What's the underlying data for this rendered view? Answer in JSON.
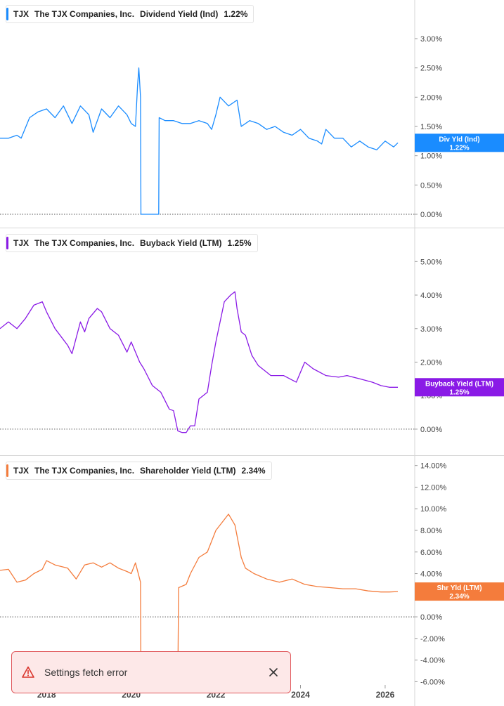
{
  "panes": [
    {
      "ticker": "TJX",
      "company": "The TJX Companies, Inc.",
      "metric": "Dividend Yield (Ind)",
      "value": "1.22%",
      "tag_label": "Div Yld (Ind)",
      "tag_value": "1.22%",
      "color": "#1a8cff"
    },
    {
      "ticker": "TJX",
      "company": "The TJX Companies, Inc.",
      "metric": "Buyback Yield (LTM)",
      "value": "1.25%",
      "tag_label": "Buyback Yield (LTM)",
      "tag_value": "1.25%",
      "color": "#8a1ae6"
    },
    {
      "ticker": "TJX",
      "company": "The TJX Companies, Inc.",
      "metric": "Shareholder Yield (LTM)",
      "value": "2.34%",
      "tag_label": "Shr Yld (LTM)",
      "tag_value": "2.34%",
      "color": "#f47c3c"
    }
  ],
  "toast": {
    "message": "Settings fetch error"
  },
  "chart_data": [
    {
      "type": "line",
      "title": "Dividend Yield (Ind)",
      "ylim": [
        0,
        3.3
      ],
      "yticks": [
        0,
        0.5,
        1.0,
        1.5,
        2.0,
        2.5,
        3.0
      ],
      "ytick_labels": [
        "0.00%",
        "0.50%",
        "1.00%",
        "1.50%",
        "2.00%",
        "2.50%",
        "3.00%"
      ],
      "x_range": [
        2016.9,
        2026.4
      ],
      "baseline": 0,
      "series": [
        {
          "color": "#1a8cff",
          "x": [
            2016.9,
            2017.1,
            2017.3,
            2017.4,
            2017.6,
            2017.8,
            2018.0,
            2018.2,
            2018.4,
            2018.6,
            2018.8,
            2019.0,
            2019.1,
            2019.3,
            2019.5,
            2019.7,
            2019.9,
            2020.0,
            2020.1,
            2020.15,
            2020.18,
            2020.22,
            2020.23,
            2020.65,
            2020.66,
            2020.8,
            2021.0,
            2021.2,
            2021.4,
            2021.6,
            2021.8,
            2021.9,
            2022.0,
            2022.1,
            2022.3,
            2022.5,
            2022.6,
            2022.8,
            2023.0,
            2023.2,
            2023.4,
            2023.6,
            2023.8,
            2024.0,
            2024.2,
            2024.4,
            2024.5,
            2024.6,
            2024.8,
            2025.0,
            2025.2,
            2025.4,
            2025.6,
            2025.8,
            2026.0,
            2026.1,
            2026.2,
            2026.3
          ],
          "y": [
            1.3,
            1.3,
            1.35,
            1.3,
            1.65,
            1.75,
            1.8,
            1.65,
            1.85,
            1.55,
            1.85,
            1.7,
            1.4,
            1.8,
            1.65,
            1.85,
            1.7,
            1.55,
            1.5,
            2.2,
            2.5,
            2.0,
            0,
            0,
            1.65,
            1.6,
            1.6,
            1.55,
            1.55,
            1.6,
            1.55,
            1.45,
            1.7,
            2.0,
            1.85,
            1.95,
            1.5,
            1.6,
            1.55,
            1.45,
            1.5,
            1.4,
            1.35,
            1.45,
            1.3,
            1.25,
            1.2,
            1.45,
            1.3,
            1.3,
            1.15,
            1.25,
            1.15,
            1.1,
            1.25,
            1.2,
            1.15,
            1.22
          ]
        }
      ]
    },
    {
      "type": "line",
      "title": "Buyback Yield (LTM)",
      "ylim": [
        -0.4,
        5.3
      ],
      "yticks": [
        0,
        1.0,
        2.0,
        3.0,
        4.0,
        5.0
      ],
      "ytick_labels": [
        "0.00%",
        "1.00%",
        "2.00%",
        "3.00%",
        "4.00%",
        "5.00%"
      ],
      "x_range": [
        2016.9,
        2026.4
      ],
      "baseline": 0,
      "series": [
        {
          "color": "#8a1ae6",
          "x": [
            2016.9,
            2017.1,
            2017.3,
            2017.5,
            2017.7,
            2017.9,
            2018.0,
            2018.2,
            2018.5,
            2018.6,
            2018.8,
            2018.9,
            2019.0,
            2019.2,
            2019.3,
            2019.5,
            2019.7,
            2019.9,
            2020.0,
            2020.2,
            2020.3,
            2020.5,
            2020.7,
            2020.9,
            2021.0,
            2021.1,
            2021.2,
            2021.3,
            2021.4,
            2021.5,
            2021.6,
            2021.8,
            2021.9,
            2022.0,
            2022.2,
            2022.35,
            2022.45,
            2022.5,
            2022.6,
            2022.7,
            2022.85,
            2023.0,
            2023.3,
            2023.6,
            2023.9,
            2024.1,
            2024.3,
            2024.6,
            2024.9,
            2025.1,
            2025.4,
            2025.7,
            2025.9,
            2026.1,
            2026.3
          ],
          "y": [
            3.0,
            3.2,
            3.0,
            3.3,
            3.7,
            3.8,
            3.5,
            3.0,
            2.5,
            2.25,
            3.2,
            2.9,
            3.3,
            3.6,
            3.5,
            3.0,
            2.8,
            2.3,
            2.6,
            2.0,
            1.8,
            1.3,
            1.1,
            0.6,
            0.55,
            -0.05,
            -0.1,
            -0.1,
            0.1,
            0.1,
            0.9,
            1.1,
            1.9,
            2.6,
            3.8,
            4.0,
            4.1,
            3.6,
            2.9,
            2.8,
            2.2,
            1.9,
            1.6,
            1.6,
            1.4,
            2.0,
            1.8,
            1.6,
            1.55,
            1.6,
            1.5,
            1.4,
            1.3,
            1.25,
            1.25
          ]
        }
      ]
    },
    {
      "type": "line",
      "title": "Shareholder Yield (LTM)",
      "ylim": [
        -6.3,
        14.5
      ],
      "yticks": [
        -6,
        -4,
        -2,
        0,
        2,
        4,
        6,
        8,
        10,
        12,
        14
      ],
      "ytick_labels": [
        "-6.00%",
        "-4.00%",
        "-2.00%",
        "0.00%",
        "2.00%",
        "4.00%",
        "6.00%",
        "8.00%",
        "10.00%",
        "12.00%",
        "14.00%"
      ],
      "x_range": [
        2016.9,
        2026.4
      ],
      "x_ticks": [
        2018,
        2020,
        2022,
        2024,
        2026
      ],
      "x_tick_labels": [
        "2018",
        "2020",
        "2022",
        "2024",
        "2026"
      ],
      "baseline": 0,
      "series": [
        {
          "color": "#f47c3c",
          "x": [
            2016.9,
            2017.1,
            2017.3,
            2017.5,
            2017.7,
            2017.9,
            2018.0,
            2018.2,
            2018.5,
            2018.7,
            2018.9,
            2019.1,
            2019.3,
            2019.5,
            2019.7,
            2019.9,
            2020.0,
            2020.1,
            2020.2,
            2020.22,
            2020.23,
            2021.1,
            2021.12,
            2021.3,
            2021.4,
            2021.6,
            2021.8,
            2022.0,
            2022.2,
            2022.3,
            2022.45,
            2022.6,
            2022.7,
            2022.9,
            2023.2,
            2023.5,
            2023.8,
            2024.1,
            2024.4,
            2024.7,
            2025.0,
            2025.3,
            2025.6,
            2025.9,
            2026.1,
            2026.3
          ],
          "y": [
            4.3,
            4.4,
            3.2,
            3.4,
            4.0,
            4.4,
            5.2,
            4.8,
            4.5,
            3.5,
            4.8,
            5.0,
            4.6,
            5.0,
            4.5,
            4.2,
            4.0,
            5.0,
            3.5,
            3.2,
            -6.5,
            -6.5,
            2.7,
            3.0,
            4.0,
            5.5,
            6.0,
            8.0,
            9.0,
            9.5,
            8.5,
            5.5,
            4.5,
            4.0,
            3.5,
            3.2,
            3.5,
            3.0,
            2.8,
            2.7,
            2.6,
            2.6,
            2.4,
            2.3,
            2.3,
            2.34
          ]
        }
      ]
    }
  ]
}
